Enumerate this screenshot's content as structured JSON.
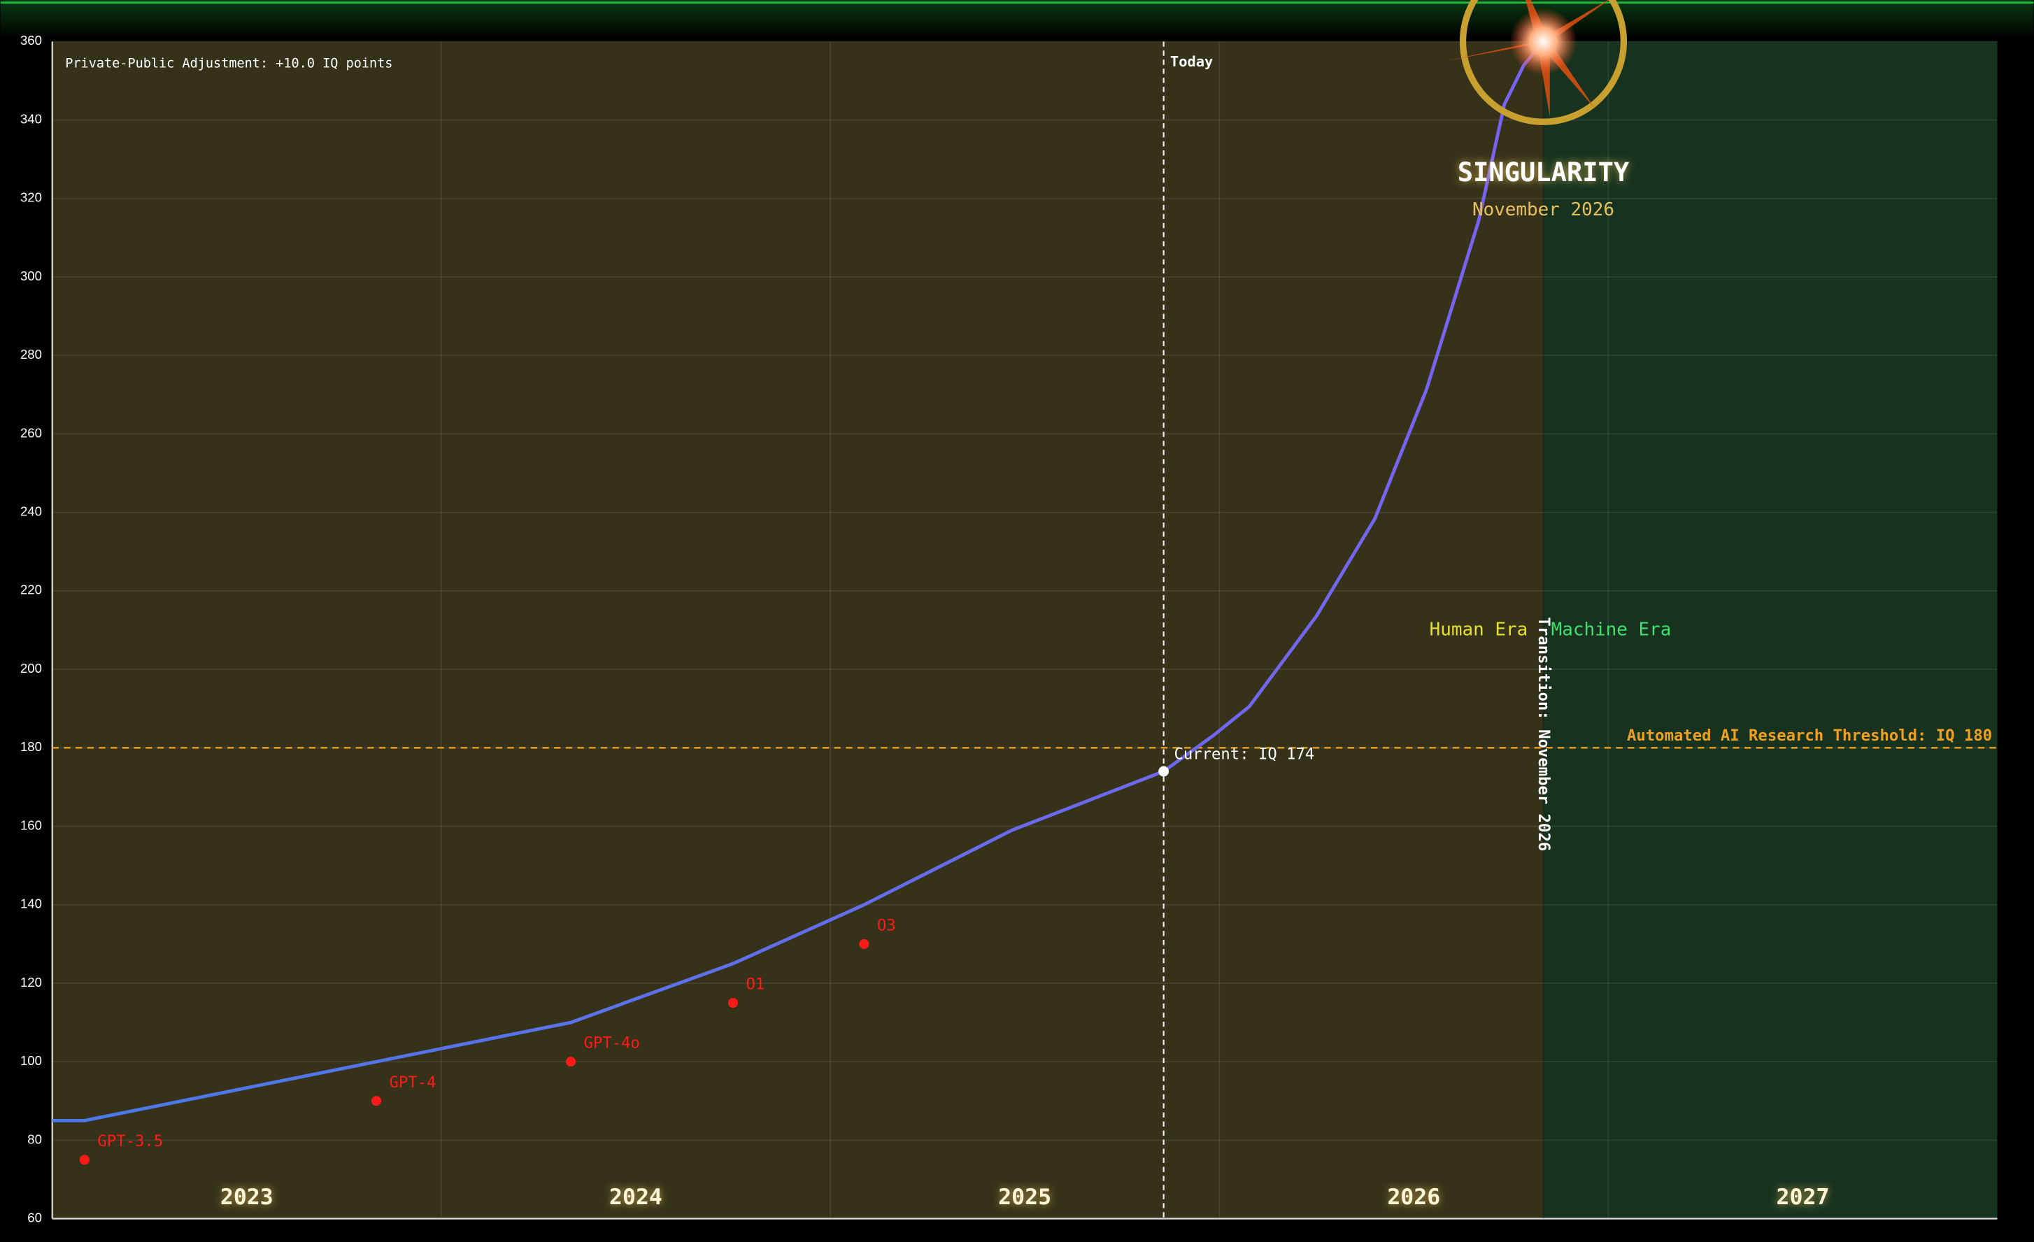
{
  "chart_data": {
    "type": "line",
    "annotations": {
      "adjustment": "Private-Public Adjustment: +10.0 IQ points",
      "today": "Today",
      "current": "Current: IQ 174",
      "threshold": "Automated AI Research Threshold: IQ 180",
      "transition": "Transition: November 2026",
      "human_era": "Human Era",
      "machine_era": "Machine Era",
      "singularity": "SINGULARITY",
      "singularity_date": "November 2026"
    },
    "x": [
      2023.0,
      2023.083,
      2023.833,
      2024.333,
      2024.75,
      2025.087,
      2025.467,
      2025.857,
      2025.983,
      2026.077,
      2026.25,
      2026.4,
      2026.533,
      2026.667,
      2026.733,
      2026.783,
      2026.833
    ],
    "series": [
      {
        "color": "#5a6ff0",
        "values": [
          85,
          85,
          100,
          110,
          125,
          140,
          159,
          174,
          183,
          190.5,
          213.6,
          238.4,
          271.4,
          314.4,
          344,
          354,
          360
        ]
      }
    ],
    "models": {
      "color": "#ff1a1a",
      "labels": [
        "GPT-3.5",
        "GPT-4",
        "GPT-4o",
        "O1",
        "O3"
      ],
      "x": [
        2023.083,
        2023.833,
        2024.333,
        2024.75,
        2025.087
      ],
      "values": [
        75,
        90,
        100,
        115,
        130
      ]
    },
    "current_point": {
      "x": 2025.857,
      "value": 174
    },
    "today_x": 2025.857,
    "transition_x": 2026.833,
    "threshold": {
      "value": 180,
      "color": "#f0a020"
    },
    "era_colors": {
      "human": "#353219",
      "machine": "#17331f",
      "human_label": "#e8e030",
      "machine_label": "#40e070"
    },
    "xlim": [
      2023,
      2028
    ],
    "xticks": [
      {
        "value": 2023.5,
        "label": "2023"
      },
      {
        "value": 2024.5,
        "label": "2024"
      },
      {
        "value": 2025.5,
        "label": "2025"
      },
      {
        "value": 2026.5,
        "label": "2026"
      },
      {
        "value": 2027.5,
        "label": "2027"
      }
    ],
    "xgrid": [
      2024,
      2025,
      2026,
      2027
    ],
    "ylim": [
      60,
      360
    ],
    "yticks": [
      60,
      80,
      100,
      120,
      140,
      160,
      180,
      200,
      220,
      240,
      260,
      280,
      300,
      320,
      340,
      360
    ],
    "grid": true
  }
}
